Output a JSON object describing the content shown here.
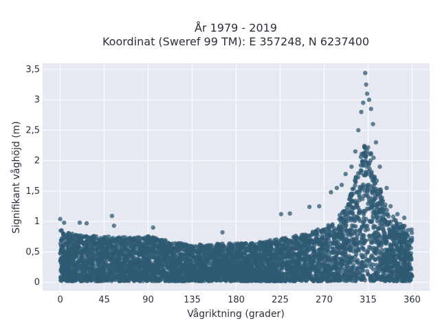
{
  "chart_data": {
    "type": "scatter",
    "title_lines": [
      "År 1979 - 2019",
      "Koordinat (Sweref 99 TM): E 357248, N 6237400"
    ],
    "xlabel": "Vågriktning (grader)",
    "ylabel": "Signifikant våghöjd (m)",
    "xlim": [
      -18,
      378
    ],
    "ylim": [
      -0.14,
      3.6
    ],
    "x_ticks": [
      0,
      45,
      90,
      135,
      180,
      225,
      270,
      315,
      360
    ],
    "x_tick_labels": [
      "0",
      "45",
      "90",
      "135",
      "180",
      "225",
      "270",
      "315",
      "360"
    ],
    "y_ticks": [
      0,
      0.5,
      1,
      1.5,
      2,
      2.5,
      3,
      3.5
    ],
    "y_tick_labels": [
      "0",
      "0,5",
      "1",
      "1,5",
      "2",
      "2,5",
      "3",
      "3,5"
    ],
    "grid": true,
    "legend": "none",
    "marker_color": "#2f5a73",
    "plot_background": "#e6e9f2",
    "envelope": {
      "x": [
        0,
        15,
        30,
        45,
        60,
        75,
        90,
        105,
        120,
        135,
        150,
        165,
        180,
        195,
        210,
        225,
        240,
        255,
        270,
        280,
        290,
        295,
        300,
        305,
        310,
        315,
        320,
        325,
        330,
        335,
        340,
        345,
        350,
        355,
        360
      ],
      "y_max_dense": [
        0.88,
        0.78,
        0.78,
        0.76,
        0.74,
        0.74,
        0.76,
        0.7,
        0.65,
        0.62,
        0.62,
        0.64,
        0.64,
        0.64,
        0.68,
        0.72,
        0.76,
        0.82,
        0.9,
        1.0,
        1.18,
        1.35,
        1.6,
        1.95,
        2.2,
        2.4,
        2.1,
        1.7,
        1.4,
        1.2,
        1.1,
        1.0,
        0.95,
        0.9,
        0.88
      ],
      "y_min": 0.02
    },
    "outliers": [
      {
        "x": 0,
        "y": 1.04
      },
      {
        "x": 4,
        "y": 0.98
      },
      {
        "x": 20,
        "y": 0.98
      },
      {
        "x": 27,
        "y": 0.97
      },
      {
        "x": 55,
        "y": 0.93
      },
      {
        "x": 53,
        "y": 1.09
      },
      {
        "x": 95,
        "y": 0.9
      },
      {
        "x": 166,
        "y": 0.82
      },
      {
        "x": 226,
        "y": 1.12
      },
      {
        "x": 235,
        "y": 1.13
      },
      {
        "x": 255,
        "y": 1.24
      },
      {
        "x": 265,
        "y": 1.25
      },
      {
        "x": 277,
        "y": 1.48
      },
      {
        "x": 283,
        "y": 1.55
      },
      {
        "x": 288,
        "y": 1.6
      },
      {
        "x": 292,
        "y": 1.78
      },
      {
        "x": 298,
        "y": 1.9
      },
      {
        "x": 302,
        "y": 2.15
      },
      {
        "x": 305,
        "y": 2.5
      },
      {
        "x": 308,
        "y": 2.8
      },
      {
        "x": 310,
        "y": 2.95
      },
      {
        "x": 312,
        "y": 3.44
      },
      {
        "x": 313,
        "y": 3.25
      },
      {
        "x": 314,
        "y": 3.1
      },
      {
        "x": 316,
        "y": 3.0
      },
      {
        "x": 318,
        "y": 2.85
      },
      {
        "x": 320,
        "y": 2.6
      },
      {
        "x": 323,
        "y": 2.3
      },
      {
        "x": 327,
        "y": 1.9
      },
      {
        "x": 334,
        "y": 1.55
      },
      {
        "x": 338,
        "y": 1.25
      },
      {
        "x": 345,
        "y": 1.12
      },
      {
        "x": 352,
        "y": 1.06
      }
    ]
  }
}
